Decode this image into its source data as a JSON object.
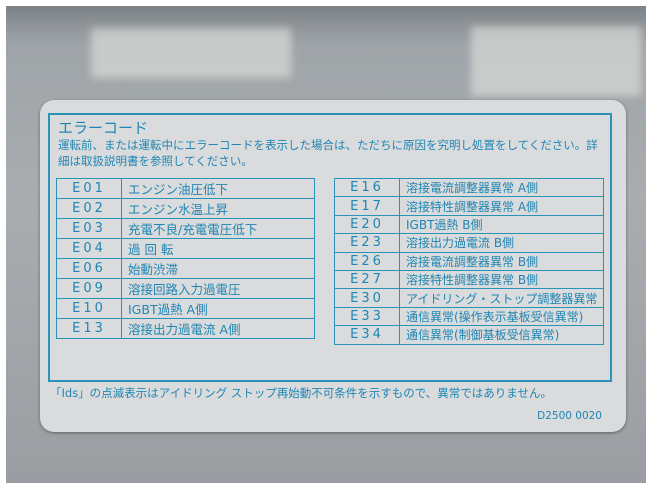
{
  "label": {
    "title": "エラーコード",
    "description": "運転前、または運転中にエラーコードを表示した場合は、ただちに原因を究明し処置をしてください。詳細は取扱説明書を参照してください。",
    "left_rows": [
      {
        "code": "E01",
        "text": "エンジン油圧低下"
      },
      {
        "code": "E02",
        "text": "エンジン水温上昇"
      },
      {
        "code": "E03",
        "text": "充電不良/充電電圧低下"
      },
      {
        "code": "E04",
        "text": "過 回 転"
      },
      {
        "code": "E06",
        "text": "始動渋滞"
      },
      {
        "code": "E09",
        "text": "溶接回路入力過電圧"
      },
      {
        "code": "E10",
        "text": "IGBT過熱 A側"
      },
      {
        "code": "E13",
        "text": "溶接出力過電流 A側"
      }
    ],
    "right_rows": [
      {
        "code": "E16",
        "text": "溶接電流調整器異常 A側"
      },
      {
        "code": "E17",
        "text": "溶接特性調整器異常 A側"
      },
      {
        "code": "E20",
        "text": "IGBT過熱 B側"
      },
      {
        "code": "E23",
        "text": "溶接出力過電流 B側"
      },
      {
        "code": "E26",
        "text": "溶接電流調整器異常 B側"
      },
      {
        "code": "E27",
        "text": "溶接特性調整器異常 B側"
      },
      {
        "code": "E30",
        "text": "アイドリング・ストップ調整器異常"
      },
      {
        "code": "E33",
        "text": "通信異常(操作表示基板受信異常)"
      },
      {
        "code": "E34",
        "text": "通信異常(制御基板受信異常)"
      }
    ],
    "note": "「Ids」の点滅表示はアイドリング ストップ再始動不可条件を示すもので、異常ではありません。",
    "part_number": "D2500 0020"
  },
  "colors": {
    "text": "#1f86b3",
    "label_bg": "#d9dbdc"
  }
}
